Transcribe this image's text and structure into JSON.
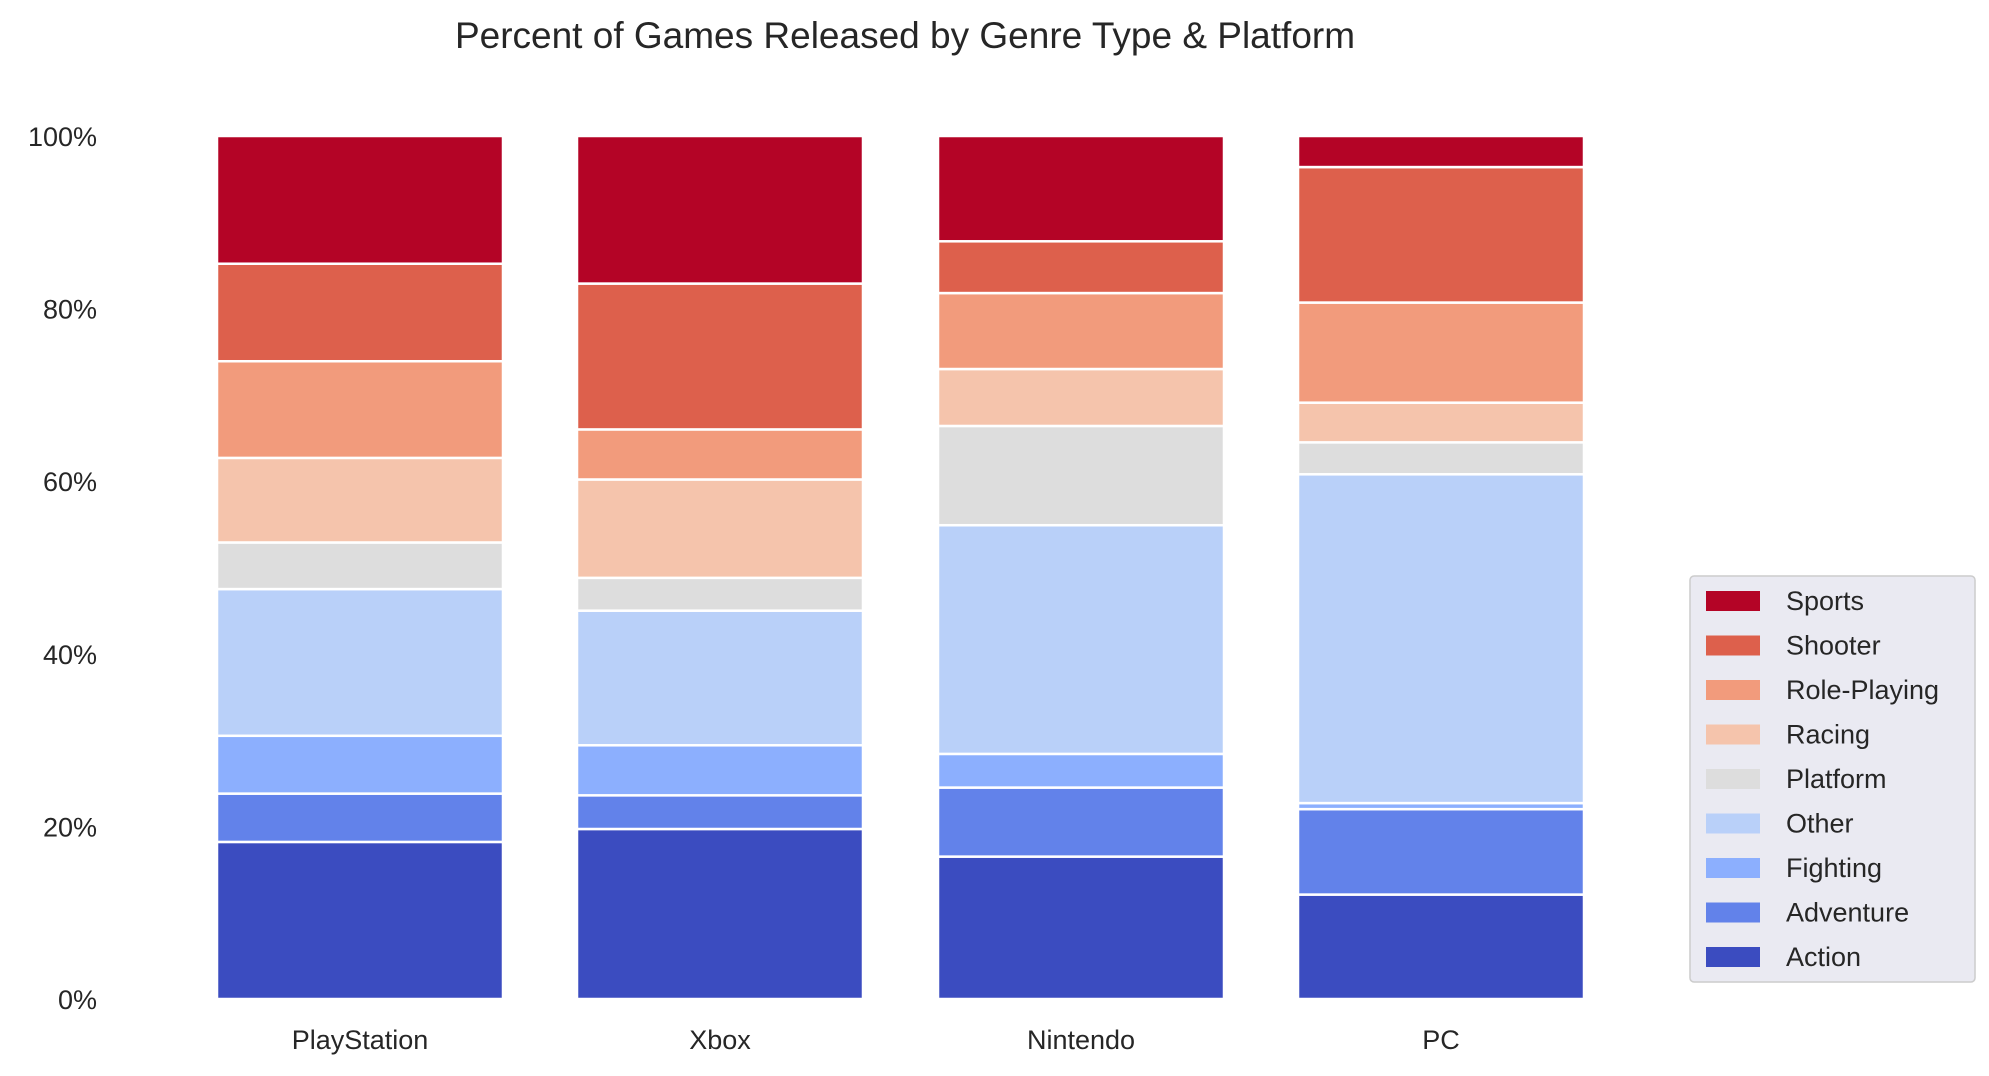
{
  "chart_data": {
    "type": "bar",
    "stacked": true,
    "title": "Percent of Games Released by Genre Type & Platform",
    "xlabel": "",
    "ylabel": "",
    "ylim": [
      0,
      100
    ],
    "yticks": [
      "0%",
      "20%",
      "40%",
      "60%",
      "80%",
      "100%"
    ],
    "grid": false,
    "legend_position": "lower-right, outside plot",
    "categories": [
      "PlayStation",
      "Xbox",
      "Nintendo",
      "PC"
    ],
    "series": [
      {
        "name": "Action",
        "color": "#3b4cc0",
        "values": [
          18.2,
          19.7,
          16.5,
          12.1
        ]
      },
      {
        "name": "Adventure",
        "color": "#6282ea",
        "values": [
          5.6,
          3.9,
          8.0,
          9.9
        ]
      },
      {
        "name": "Fighting",
        "color": "#8caffe",
        "values": [
          6.7,
          5.8,
          3.9,
          0.7
        ]
      },
      {
        "name": "Other",
        "color": "#b9d0f9",
        "values": [
          17.0,
          15.6,
          26.5,
          38.1
        ]
      },
      {
        "name": "Platform",
        "color": "#dddddd",
        "values": [
          5.4,
          3.8,
          11.5,
          3.7
        ]
      },
      {
        "name": "Racing",
        "color": "#f5c4ac",
        "values": [
          9.8,
          11.4,
          6.6,
          4.6
        ]
      },
      {
        "name": "Role-Playing",
        "color": "#f29b7c",
        "values": [
          11.2,
          5.8,
          8.8,
          11.6
        ]
      },
      {
        "name": "Shooter",
        "color": "#dd604c",
        "values": [
          11.3,
          16.9,
          6.0,
          15.7
        ]
      },
      {
        "name": "Sports",
        "color": "#b40426",
        "values": [
          14.8,
          17.1,
          12.2,
          3.6
        ]
      }
    ]
  }
}
